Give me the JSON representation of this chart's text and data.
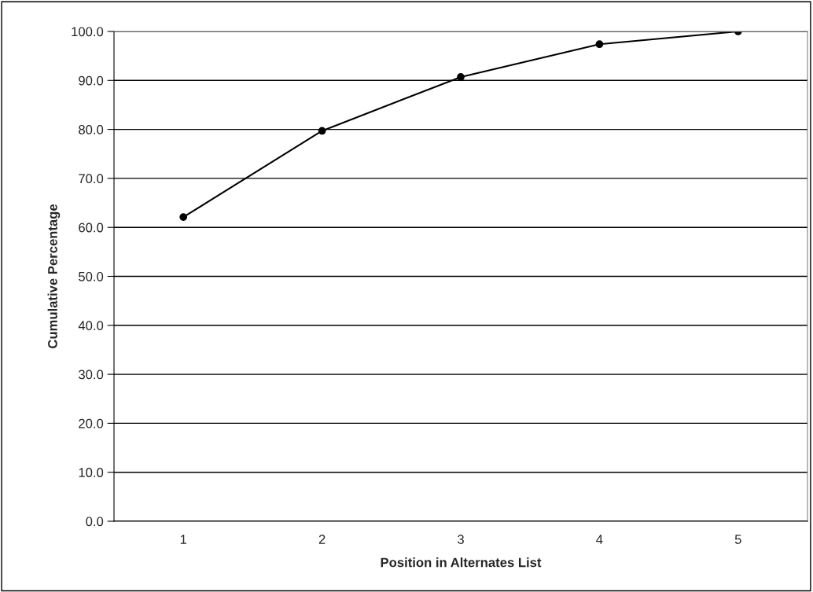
{
  "chart_data": {
    "type": "line",
    "xlabel": "Position in Alternates List",
    "ylabel": "Cumulative Percentage",
    "categories": [
      "1",
      "2",
      "3",
      "4",
      "5"
    ],
    "series": [
      {
        "color": "#000000",
        "values": [
          62.1,
          79.7,
          90.7,
          97.4,
          100.0
        ]
      }
    ],
    "ylim": [
      0,
      100
    ],
    "yticks": [
      {
        "value": 0,
        "label": "0.0"
      },
      {
        "value": 10,
        "label": "10.0"
      },
      {
        "value": 20,
        "label": "20.0"
      },
      {
        "value": 30,
        "label": "30.0"
      },
      {
        "value": 40,
        "label": "40.0"
      },
      {
        "value": 50,
        "label": "50.0"
      },
      {
        "value": 60,
        "label": "60.0"
      },
      {
        "value": 70,
        "label": "70.0"
      },
      {
        "value": 80,
        "label": "80.0"
      },
      {
        "value": 90,
        "label": "90.0"
      },
      {
        "value": 100,
        "label": "100.0"
      }
    ],
    "grid": "y",
    "marker": "circle",
    "line_style": "solid"
  }
}
